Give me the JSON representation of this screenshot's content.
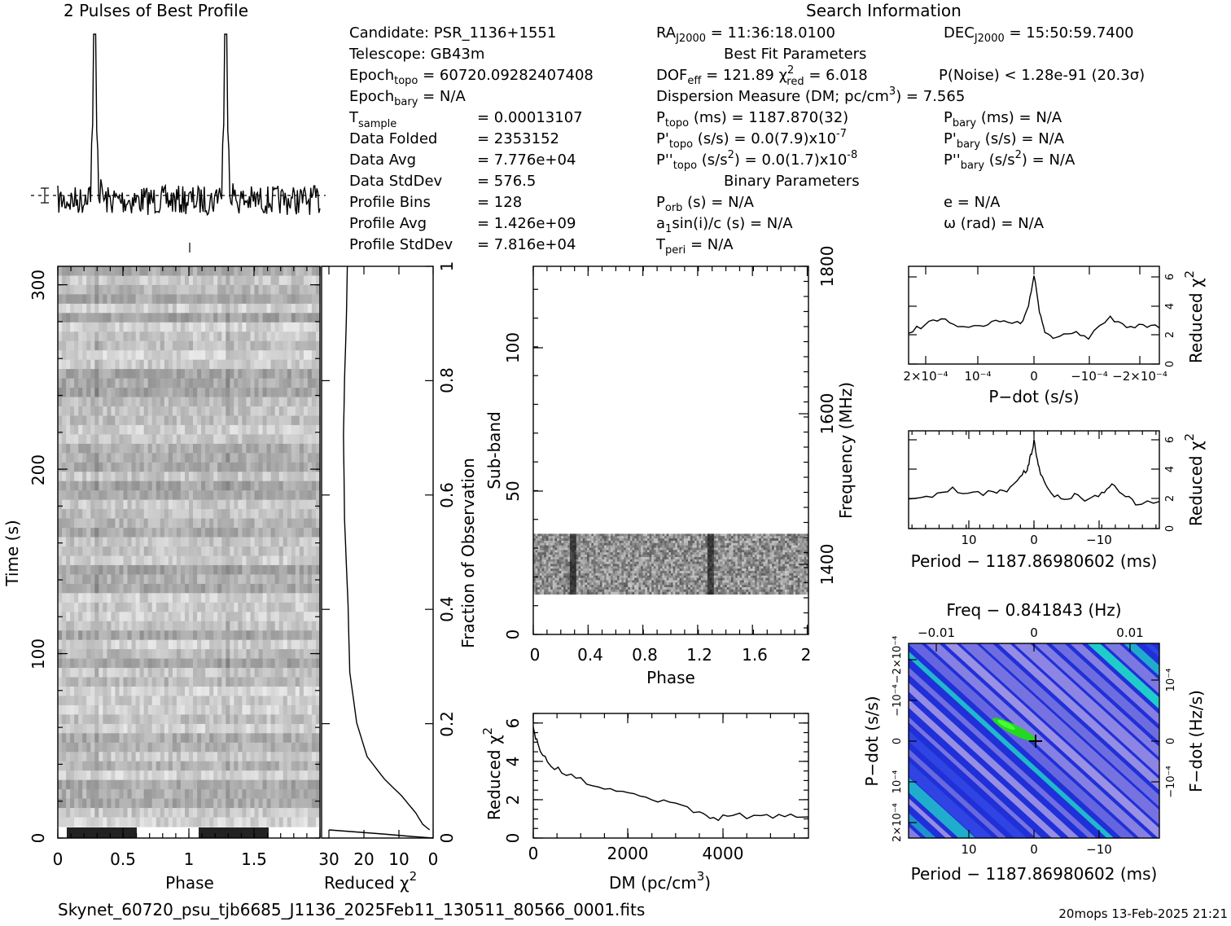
{
  "header": {
    "profile_title": "2 Pulses of Best Profile",
    "search_title": "Search Information",
    "best_fit_title": "Best Fit Parameters",
    "binary_title": "Binary Parameters",
    "footer_file": "Skynet_60720_psu_tjb6685_J1136_2025Feb11_130511_80566_0001.fits",
    "footer_stamp": "20mops 13-Feb-2025 21:21"
  },
  "info_left": [
    {
      "label": "Candidate:  PSR_1136+1551",
      "value": ""
    },
    {
      "label": "Telescope:  GB43m",
      "value": ""
    },
    {
      "label": "Epoch",
      "sub": "topo",
      "value": " = 60720.09282407408"
    },
    {
      "label": "Epoch",
      "sub": "bary",
      "value": " = N/A"
    },
    {
      "label": "T",
      "sub": "sample",
      "value": "=  0.00013107"
    },
    {
      "label": "Data Folded",
      "value": "=  2353152"
    },
    {
      "label": "Data Avg",
      "value": "=  7.776e+04"
    },
    {
      "label": "Data StdDev",
      "value": "=  576.5"
    },
    {
      "label": "Profile Bins",
      "value": "=  128"
    },
    {
      "label": "Profile Avg",
      "value": "=  1.426e+09"
    },
    {
      "label": "Profile StdDev",
      "value": "=  7.816e+04"
    }
  ],
  "info_mid": {
    "ra": "RA",
    "ra_sub": "J2000",
    "ra_val": " = 11:36:18.0100",
    "dof": "DOF",
    "dof_sub": "eff",
    "dof_val": " = 121.89",
    "chi": "χ",
    "chi_sub": "red",
    "chi_val": " = 6.018",
    "dm_line": "Dispersion Measure (DM; pc/cm",
    "dm_val": ") = 7.565",
    "ptopo": "P",
    "ptopo_sub": "topo",
    "ptopo_val": " (ms) =  1187.870(32)",
    "pdtopo": "P'",
    "pdtopo_sub": "topo",
    "pdtopo_val": " (s/s) = 0.0(7.9)x10",
    "pdtopo_exp": "-7",
    "pddtopo": "P''",
    "pddtopo_sub": "topo",
    "pddtopo_val": " (s/s",
    "pddtopo_val2": ") = 0.0(1.7)x10",
    "pddtopo_exp": "-8",
    "porb": "P",
    "porb_sub": "orb",
    "porb_val": " (s) = N/A",
    "a1": "a",
    "a1_sub": "1",
    "a1_val": "sin(i)/c (s) = N/A",
    "tperi": "T",
    "tperi_sub": "peri",
    "tperi_val": " = N/A"
  },
  "info_right": {
    "dec": "DEC",
    "dec_sub": "J2000",
    "dec_val": " = 15:50:59.7400",
    "pnoise": "P(Noise) < 1.28e-91  (20.3σ)",
    "pbary": "P",
    "pbary_sub": "bary",
    "pbary_val": " (ms) = N/A",
    "pdbary": "P'",
    "pdbary_sub": "bary",
    "pdbary_val": " (s/s) = N/A",
    "pddbary": "P''",
    "pddbary_sub": "bary",
    "pddbary_val": " (s/s",
    "pddbary_val2": ") = N/A",
    "ecc": "e = N/A",
    "omega": "ω (rad) = N/A"
  },
  "chart_data": [
    {
      "type": "line",
      "id": "profile",
      "title": "2 Pulses of Best Profile",
      "xlim": [
        0,
        2
      ],
      "peaks_at_phase": [
        0.28,
        1.28
      ]
    },
    {
      "type": "heatmap",
      "id": "time_phase",
      "xlabel": "Phase",
      "ylabel": "Time (s)",
      "xlim": [
        0,
        2
      ],
      "ylim": [
        0,
        310
      ],
      "x_ticks": [
        "0",
        "0.5",
        "1",
        "1.5"
      ],
      "y_ticks": [
        "0",
        "100",
        "200",
        "300"
      ]
    },
    {
      "type": "line",
      "id": "chi_vs_time",
      "xlabel": "Reduced χ",
      "x_exp": "2",
      "ylabel": "Fraction of Observation",
      "x_ticks": [
        "30",
        "20",
        "10",
        "0"
      ],
      "y_ticks": [
        "0",
        "0.2",
        "0.4",
        "0.6",
        "0.8",
        "1"
      ],
      "xlim": [
        30,
        0
      ],
      "ylim": [
        0,
        1
      ],
      "x": [
        1,
        3,
        5,
        9,
        14,
        19,
        22,
        24,
        24.5,
        25.5,
        25.8,
        25.5,
        25,
        24.7
      ],
      "y": [
        0.0,
        0.01,
        0.03,
        0.06,
        0.09,
        0.13,
        0.19,
        0.28,
        0.4,
        0.55,
        0.7,
        0.8,
        0.9,
        1.0
      ]
    },
    {
      "type": "heatmap",
      "id": "subband_phase",
      "xlabel": "Phase",
      "ylabel": "Sub-band",
      "y2label": "Frequency (MHz)",
      "xlim": [
        0,
        2
      ],
      "ylim": [
        0,
        128
      ],
      "x_ticks": [
        "0",
        "0.4",
        "0.8",
        "1.2",
        "1.6",
        "2"
      ],
      "y_ticks": [
        "0",
        "50",
        "100"
      ],
      "y2_ticks": [
        "1400",
        "1600",
        "1800"
      ],
      "band_range": [
        14,
        35
      ]
    },
    {
      "type": "line",
      "id": "dm_curve",
      "xlabel": "DM (pc/cm",
      "xlabel_exp": "3",
      "xlabel_end": ")",
      "ylabel": "Reduced χ",
      "ylabel_exp": "2",
      "xlim": [
        0,
        5800
      ],
      "ylim": [
        0,
        6.5
      ],
      "x_ticks": [
        "0",
        "2000",
        "4000"
      ],
      "y_ticks": [
        "0",
        "2",
        "4",
        "6"
      ],
      "x": [
        0,
        100,
        300,
        600,
        1000,
        1500,
        2000,
        2500,
        3000,
        3500,
        3800,
        4200,
        4800,
        5300,
        5800
      ],
      "y": [
        5.8,
        4.8,
        4.0,
        3.4,
        3.0,
        2.7,
        2.3,
        2.0,
        1.7,
        1.4,
        1.0,
        1.2,
        1.1,
        1.2,
        1.1
      ]
    },
    {
      "type": "line",
      "id": "pdot_curve",
      "xlabel": "P−dot (s/s)",
      "ylabel": "Reduced χ",
      "ylabel_exp": "2",
      "x_ticks": [
        "2×10⁻⁴",
        "10⁻⁴",
        "0",
        "−10⁻⁴",
        "−2×10⁻⁴"
      ],
      "y_ticks": [
        "0",
        "2",
        "4",
        "6"
      ],
      "xlim": [
        0.00023,
        -0.00023
      ],
      "ylim": [
        0,
        6.5
      ],
      "x": [
        0.00023,
        0.0002,
        0.00017,
        0.00014,
        0.0001,
        7e-05,
        4e-05,
        2e-05,
        1e-05,
        0,
        -1e-05,
        -2e-05,
        -4e-05,
        -7e-05,
        -0.0001,
        -0.00014,
        -0.00017,
        -0.0002,
        -0.00023
      ],
      "y": [
        2.2,
        2.6,
        3.1,
        2.5,
        2.4,
        2.9,
        2.6,
        2.9,
        3.8,
        6.0,
        3.5,
        2.2,
        1.7,
        2.1,
        1.8,
        3.1,
        2.5,
        2.6,
        2.4
      ]
    },
    {
      "type": "line",
      "id": "period_curve",
      "xlabel": "Period − 1187.86980602 (ms)",
      "ylabel": "Reduced χ",
      "ylabel_exp": "2",
      "x_ticks": [
        "10",
        "0",
        "−10"
      ],
      "y_ticks": [
        "0",
        "2",
        "4",
        "6"
      ],
      "xlim": [
        18.5,
        -18.5
      ],
      "ylim": [
        0,
        6.5
      ],
      "x": [
        18.5,
        15,
        12,
        9,
        6,
        4,
        2,
        1,
        0.5,
        0,
        -0.5,
        -1,
        -2,
        -4,
        -6,
        -8,
        -10,
        -11.5,
        -13,
        -15,
        -18.5
      ],
      "y": [
        1.9,
        2.1,
        2.6,
        2.3,
        2.4,
        2.6,
        3.4,
        4.0,
        4.8,
        5.8,
        4.6,
        3.7,
        2.6,
        1.9,
        2.2,
        1.8,
        2.4,
        3.0,
        2.3,
        1.7,
        1.8
      ]
    },
    {
      "type": "heatmap",
      "id": "p_pdot_plane",
      "title": "Freq − 0.841843 (Hz)",
      "xlabel": "Period − 1187.86980602 (ms)",
      "ylabel": "P−dot (s/s)",
      "y2label": "F−dot (Hz/s)",
      "x_ticks": [
        "10",
        "0",
        "−10"
      ],
      "x2_ticks": [
        "−0.01",
        "0",
        "0.01"
      ],
      "y_ticks": [
        "2×10⁻⁴",
        "10⁻⁴",
        "0",
        "−10⁻⁴",
        "−2×10⁻⁴"
      ],
      "y2_ticks": [
        "−10⁻⁴",
        "0",
        "10⁻⁴"
      ],
      "best": [
        0,
        0
      ],
      "colors": {
        "low": "#2030d8",
        "mid": "#b9a8e8",
        "high": "#20e8c8",
        "peak": "#22d822"
      }
    }
  ]
}
